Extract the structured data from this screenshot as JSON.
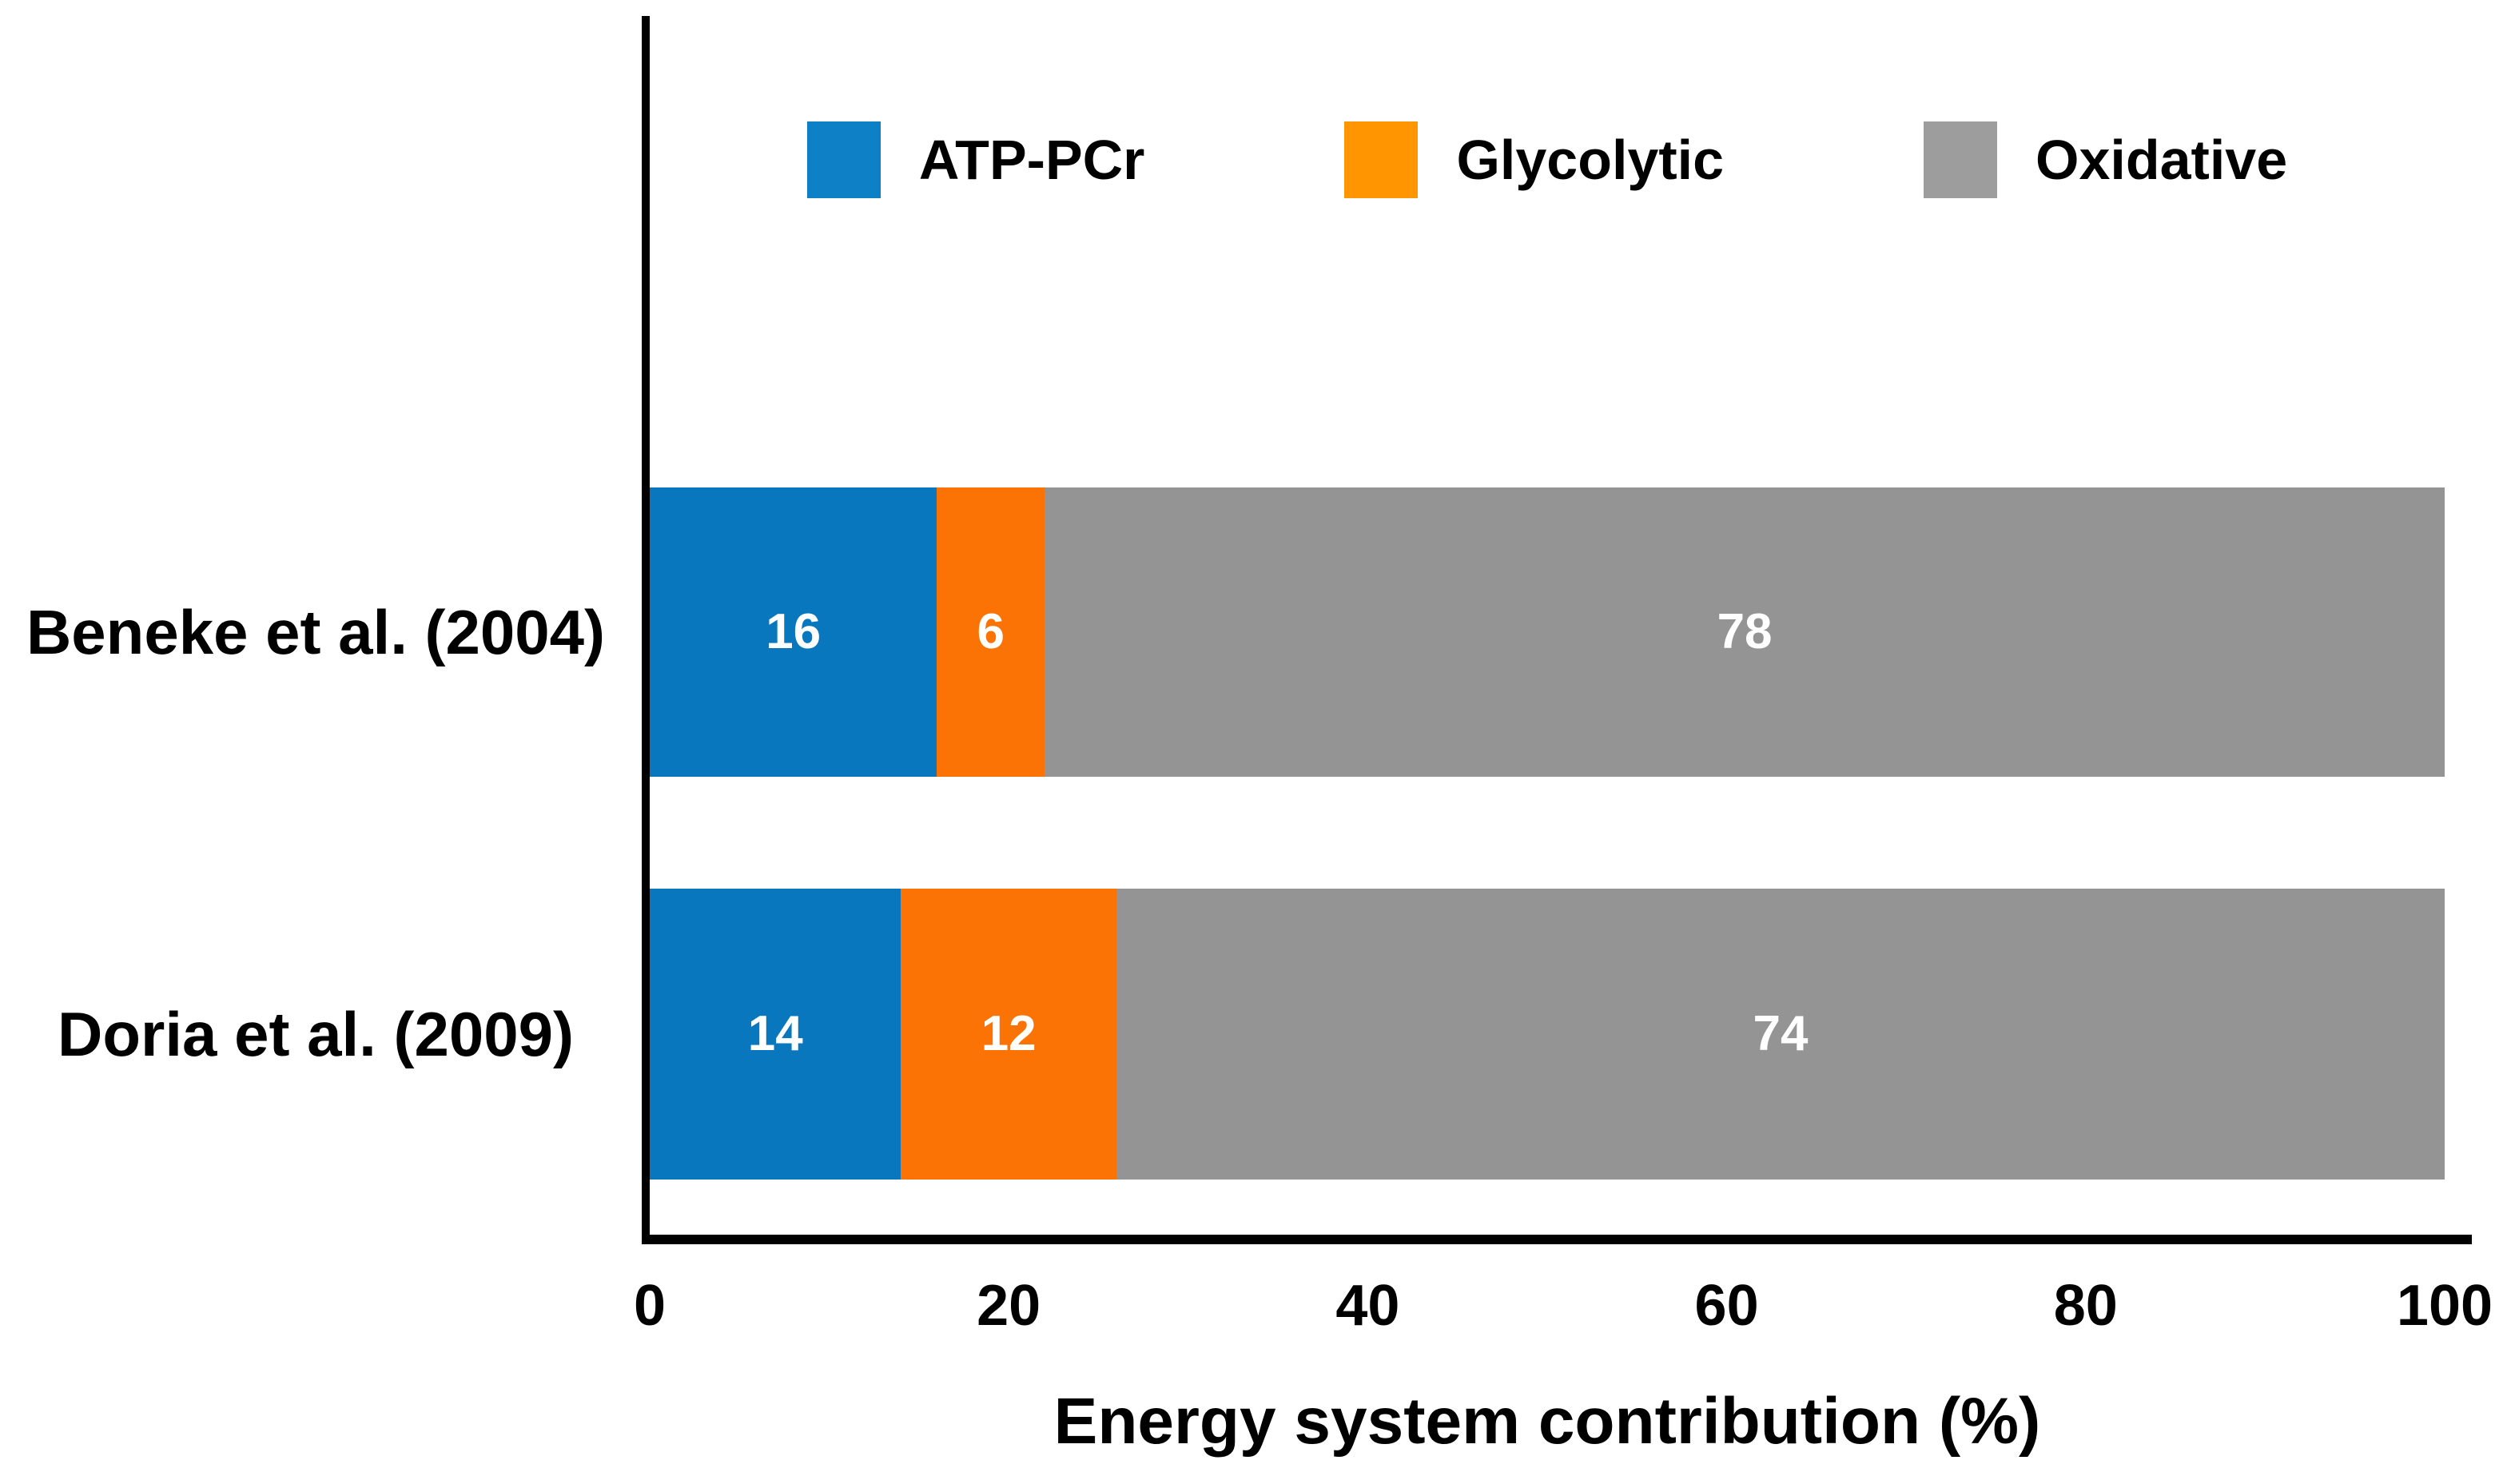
{
  "chart_data": {
    "type": "bar",
    "orientation": "horizontal",
    "stacked": true,
    "title": "",
    "xlabel": "Energy system contribution (%)",
    "ylabel": "",
    "categories": [
      "Beneke et al. (2004)",
      "Doria et al. (2009)"
    ],
    "series": [
      {
        "name": "ATP-PCr",
        "color": "#0877BD",
        "legend_color": "#0E81C6",
        "values": [
          16,
          14
        ]
      },
      {
        "name": "Glycolytic",
        "color": "#FB7304",
        "legend_color": "#FF9500",
        "values": [
          6,
          12
        ]
      },
      {
        "name": "Oxidative",
        "color": "#949494",
        "legend_color": "#9D9D9D",
        "values": [
          78,
          74
        ]
      }
    ],
    "x_ticks": [
      "0",
      "20",
      "40",
      "60",
      "80",
      "100"
    ],
    "xlim": [
      0,
      100
    ],
    "grid": false,
    "legend_position": "top-center",
    "value_labels": {
      "position": "inside-center",
      "color": "#FFFFFF"
    },
    "axis_color": "#000000",
    "background_color": "#FFFFFF"
  }
}
